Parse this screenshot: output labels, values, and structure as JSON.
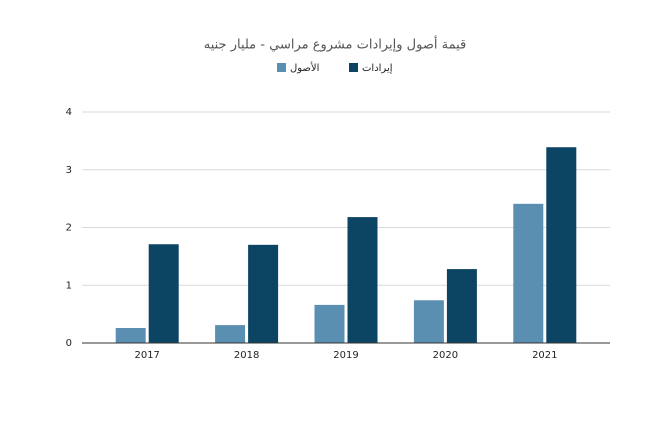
{
  "chart_data": {
    "type": "bar",
    "title": "قيمة أصول وإيرادات مشروع مراسي - مليار جنيه",
    "categories": [
      "2017",
      "2018",
      "2019",
      "2020",
      "2021"
    ],
    "series": [
      {
        "name": "الأصول",
        "color": "#5b8fb1",
        "values": [
          0.26,
          0.31,
          0.66,
          0.74,
          2.41
        ]
      },
      {
        "name": "إيرادات",
        "color": "#0c4563",
        "values": [
          1.71,
          1.7,
          2.18,
          1.28,
          3.39
        ]
      }
    ],
    "ylim": [
      0,
      4
    ],
    "yticks": [
      0,
      1,
      2,
      3,
      4
    ],
    "grid": true
  }
}
